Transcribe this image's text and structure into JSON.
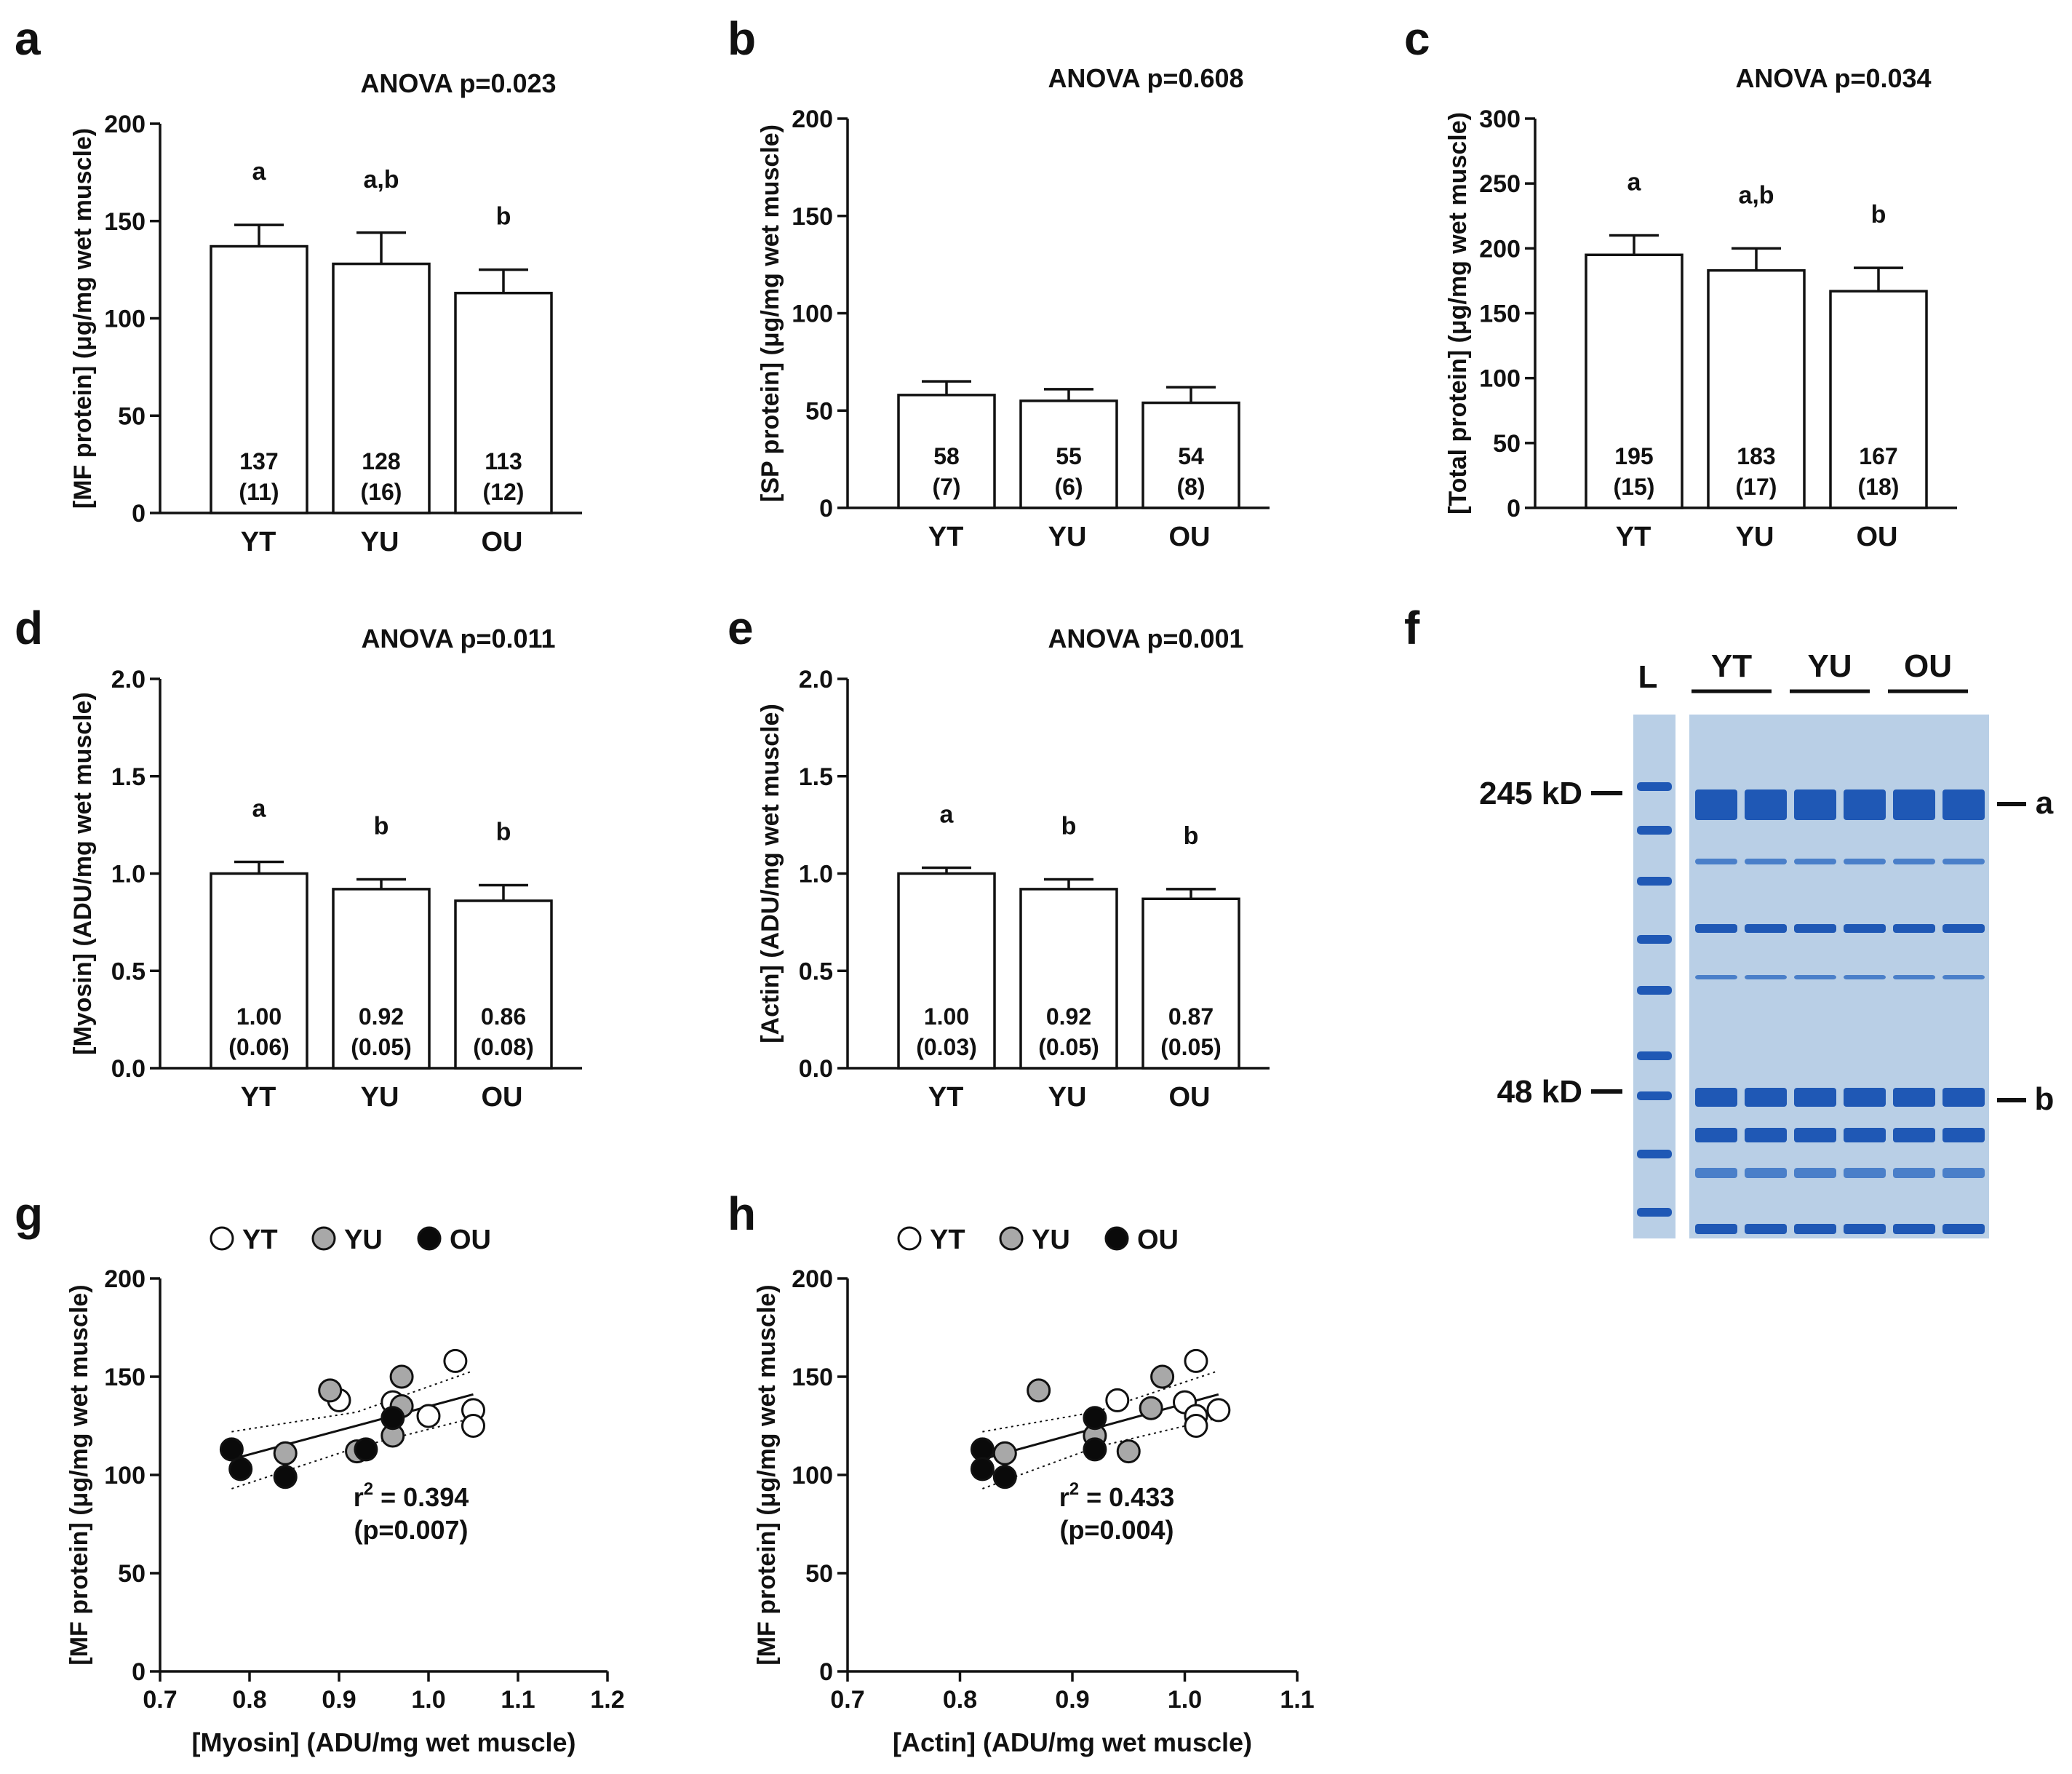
{
  "colors": {
    "ink": "#111111",
    "bar_fill": "#ffffff",
    "yt_fill": "#ffffff",
    "yu_fill": "#a8a8a8",
    "ou_fill": "#0a0a0a",
    "gel_bg": "#b9cfe6",
    "gel_band": "#1f58b5",
    "gel_band_light": "#4a7fc9"
  },
  "chart_data": [
    {
      "panel": "a",
      "type": "bar",
      "title": "ANOVA p=0.023",
      "ylabel": "[MF protein] (μg/mg wet muscle)",
      "ylim": [
        0,
        200
      ],
      "yticks": [
        "0",
        "50",
        "100",
        "150",
        "200"
      ],
      "categories": [
        "YT",
        "YU",
        "OU"
      ],
      "values": [
        137,
        128,
        113
      ],
      "errors": [
        11,
        16,
        12
      ],
      "sig": [
        "a",
        "a,b",
        "b"
      ],
      "value_labels": [
        "137",
        "128",
        "113"
      ],
      "error_labels": [
        "(11)",
        "(16)",
        "(12)"
      ]
    },
    {
      "panel": "b",
      "type": "bar",
      "title": "ANOVA p=0.608",
      "ylabel": "[SP protein] (μg/mg wet muscle)",
      "ylim": [
        0,
        200
      ],
      "yticks": [
        "0",
        "50",
        "100",
        "150",
        "200"
      ],
      "categories": [
        "YT",
        "YU",
        "OU"
      ],
      "values": [
        58,
        55,
        54
      ],
      "errors": [
        7,
        6,
        8
      ],
      "sig": [
        "",
        "",
        ""
      ],
      "value_labels": [
        "58",
        "55",
        "54"
      ],
      "error_labels": [
        "(7)",
        "(6)",
        "(8)"
      ]
    },
    {
      "panel": "c",
      "type": "bar",
      "title": "ANOVA p=0.034",
      "ylabel": "[Total protein] (μg/mg wet muscle)",
      "ylim": [
        0,
        300
      ],
      "yticks": [
        "0",
        "50",
        "100",
        "150",
        "200",
        "250",
        "300"
      ],
      "categories": [
        "YT",
        "YU",
        "OU"
      ],
      "values": [
        195,
        183,
        167
      ],
      "errors": [
        15,
        17,
        18
      ],
      "sig": [
        "a",
        "a,b",
        "b"
      ],
      "value_labels": [
        "195",
        "183",
        "167"
      ],
      "error_labels": [
        "(15)",
        "(17)",
        "(18)"
      ]
    },
    {
      "panel": "d",
      "type": "bar",
      "title": "ANOVA p=0.011",
      "ylabel": "[Myosin] (ADU/mg wet muscle)",
      "ylim": [
        0,
        2.0
      ],
      "yticks": [
        "0.0",
        "0.5",
        "1.0",
        "1.5",
        "2.0"
      ],
      "categories": [
        "YT",
        "YU",
        "OU"
      ],
      "values": [
        1.0,
        0.92,
        0.86
      ],
      "errors": [
        0.06,
        0.05,
        0.08
      ],
      "sig": [
        "a",
        "b",
        "b"
      ],
      "value_labels": [
        "1.00",
        "0.92",
        "0.86"
      ],
      "error_labels": [
        "(0.06)",
        "(0.05)",
        "(0.08)"
      ]
    },
    {
      "panel": "e",
      "type": "bar",
      "title": "ANOVA p=0.001",
      "ylabel": "[Actin] (ADU/mg wet muscle)",
      "ylim": [
        0,
        2.0
      ],
      "yticks": [
        "0.0",
        "0.5",
        "1.0",
        "1.5",
        "2.0"
      ],
      "categories": [
        "YT",
        "YU",
        "OU"
      ],
      "values": [
        1.0,
        0.92,
        0.87
      ],
      "errors": [
        0.03,
        0.05,
        0.05
      ],
      "sig": [
        "a",
        "b",
        "b"
      ],
      "value_labels": [
        "1.00",
        "0.92",
        "0.87"
      ],
      "error_labels": [
        "(0.03)",
        "(0.05)",
        "(0.05)"
      ]
    },
    {
      "panel": "g",
      "type": "scatter",
      "xlabel": "[Myosin] (ADU/mg wet muscle)",
      "ylabel": "[MF protein] (μg/mg wet muscle)",
      "xlim": [
        0.7,
        1.2
      ],
      "ylim": [
        0,
        200
      ],
      "xticks": [
        "0.7",
        "0.8",
        "0.9",
        "1.0",
        "1.1",
        "1.2"
      ],
      "yticks": [
        "0",
        "50",
        "100",
        "150",
        "200"
      ],
      "legend": [
        "YT",
        "YU",
        "OU"
      ],
      "series": [
        {
          "name": "YT",
          "points": [
            [
              1.03,
              158
            ],
            [
              0.9,
              138
            ],
            [
              0.96,
              137
            ],
            [
              1.0,
              130
            ],
            [
              1.05,
              133
            ],
            [
              1.05,
              125
            ]
          ]
        },
        {
          "name": "YU",
          "points": [
            [
              0.89,
              143
            ],
            [
              0.97,
              150
            ],
            [
              0.97,
              135
            ],
            [
              0.96,
              120
            ],
            [
              0.92,
              112
            ],
            [
              0.84,
              111
            ]
          ]
        },
        {
          "name": "OU",
          "points": [
            [
              0.78,
              113
            ],
            [
              0.79,
              103
            ],
            [
              0.84,
              99
            ],
            [
              0.93,
              113
            ],
            [
              0.96,
              129
            ]
          ]
        }
      ],
      "fit": {
        "x": [
          0.78,
          1.05
        ],
        "y": [
          108,
          141
        ]
      },
      "ci_upper": {
        "x": [
          0.78,
          0.92,
          1.05
        ],
        "y": [
          122,
          132,
          153
        ]
      },
      "ci_lower": {
        "x": [
          0.78,
          0.92,
          1.05
        ],
        "y": [
          93,
          114,
          129
        ]
      },
      "r2_label": "r",
      "r2_sup": "2",
      "r2_value": " = 0.394",
      "p_label": "(p=0.007)"
    },
    {
      "panel": "h",
      "type": "scatter",
      "xlabel": "[Actin] (ADU/mg wet muscle)",
      "ylabel": "[MF protein] (μg/mg wet muscle)",
      "xlim": [
        0.7,
        1.1
      ],
      "ylim": [
        0,
        200
      ],
      "xticks": [
        "0.7",
        "0.8",
        "0.9",
        "1.0",
        "1.1"
      ],
      "yticks": [
        "0",
        "50",
        "100",
        "150",
        "200"
      ],
      "legend": [
        "YT",
        "YU",
        "OU"
      ],
      "series": [
        {
          "name": "YT",
          "points": [
            [
              1.01,
              158
            ],
            [
              0.94,
              138
            ],
            [
              1.0,
              137
            ],
            [
              1.01,
              130
            ],
            [
              1.03,
              133
            ],
            [
              1.01,
              125
            ]
          ]
        },
        {
          "name": "YU",
          "points": [
            [
              0.87,
              143
            ],
            [
              0.98,
              150
            ],
            [
              0.97,
              134
            ],
            [
              0.92,
              120
            ],
            [
              0.95,
              112
            ],
            [
              0.84,
              111
            ]
          ]
        },
        {
          "name": "OU",
          "points": [
            [
              0.82,
              113
            ],
            [
              0.82,
              103
            ],
            [
              0.84,
              99
            ],
            [
              0.92,
              113
            ],
            [
              0.92,
              129
            ]
          ]
        }
      ],
      "fit": {
        "x": [
          0.82,
          1.03
        ],
        "y": [
          108,
          141
        ]
      },
      "ci_upper": {
        "x": [
          0.82,
          0.92,
          1.03
        ],
        "y": [
          122,
          132,
          153
        ]
      },
      "ci_lower": {
        "x": [
          0.82,
          0.92,
          1.03
        ],
        "y": [
          93,
          114,
          129
        ]
      },
      "r2_label": "r",
      "r2_sup": "2",
      "r2_value": " = 0.433",
      "p_label": "(p=0.004)"
    }
  ],
  "gel": {
    "panel": "f",
    "ladder_label": "L",
    "groups": [
      "YT",
      "YU",
      "OU"
    ],
    "markers": [
      "245 kD",
      "48 kD"
    ],
    "band_labels": [
      "a",
      "b"
    ]
  }
}
